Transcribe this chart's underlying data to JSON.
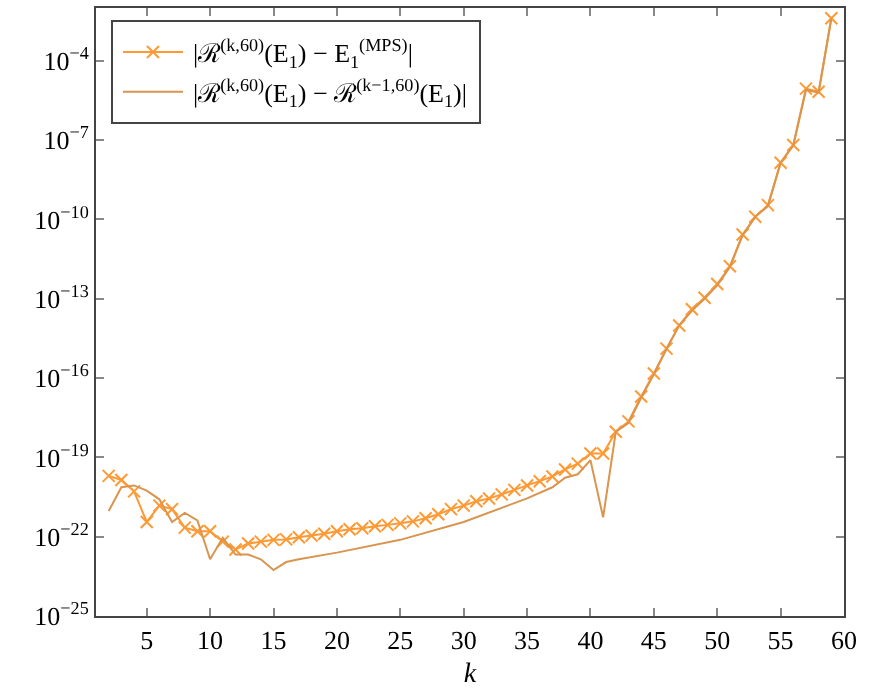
{
  "chart_data": {
    "type": "line",
    "xlabel": "k",
    "log": "y",
    "grid": false,
    "legend": "top left",
    "xlim": [
      1,
      60
    ],
    "xticks": [
      5,
      10,
      15,
      20,
      25,
      30,
      35,
      40,
      45,
      50,
      55,
      60
    ],
    "ylim": [
      1e-25,
      0.01
    ],
    "yticks": [
      {
        "value": 1e-25,
        "label": "10$^{−25}$"
      },
      {
        "value": 1e-22,
        "label": "10$^{−22}$"
      },
      {
        "value": 1e-19,
        "label": "10$^{−19}$"
      },
      {
        "value": 1e-16,
        "label": "10$^{−16}$"
      },
      {
        "value": 1e-13,
        "label": "10$^{−13}$"
      },
      {
        "value": 1e-10,
        "label": "10$^{−10}$"
      },
      {
        "value": 1e-07,
        "label": "10$^{−7}$"
      },
      {
        "value": 0.0001,
        "label": "10$^{−4}$"
      }
    ],
    "series": [
      {
        "name": "|ℛ$^{(k,60)}$(E$_{1}$) − E$_{1}$$^{(MPS)}$|",
        "color": "#ff9933",
        "marker": "cross",
        "x": [
          2,
          3,
          4,
          5,
          6,
          7,
          8,
          9,
          10,
          11,
          12,
          13,
          14,
          15,
          16,
          17,
          18,
          19,
          20,
          21,
          22,
          23,
          24,
          25,
          26,
          27,
          28,
          29,
          30,
          31,
          32,
          33,
          34,
          35,
          36,
          37,
          38,
          39,
          40,
          41,
          42,
          43,
          44,
          45,
          46,
          47,
          48,
          49,
          50,
          51,
          52,
          53,
          54,
          55,
          56,
          57,
          58,
          59
        ],
        "values": [
          2e-20,
          1.4e-20,
          5.2e-21,
          3.6e-22,
          1.5e-21,
          1.1e-21,
          2.2e-22,
          1.6e-22,
          1.6e-22,
          6.5e-23,
          3.3e-23,
          5.5e-23,
          6.5e-23,
          7.6e-23,
          7.9e-23,
          9.5e-23,
          1.1e-22,
          1.3e-22,
          1.6e-22,
          1.9e-22,
          2.1e-22,
          2.5e-22,
          2.8e-22,
          3.2e-22,
          3.8e-22,
          5e-22,
          7.1e-22,
          1.1e-21,
          1.5e-21,
          2.2e-21,
          2.8e-21,
          4e-21,
          5.9e-21,
          8.7e-21,
          1.26e-20,
          1.9e-20,
          3.5e-20,
          5.8e-20,
          1.4e-19,
          1.4e-19,
          9.3e-19,
          2.3e-18,
          2e-17,
          1.5e-16,
          1.3e-15,
          9.8e-15,
          4e-14,
          1.1e-13,
          3.6e-13,
          1.7e-12,
          2.7e-11,
          1.26e-10,
          3.5e-10,
          1.4e-08,
          6.6e-08,
          8.9e-06,
          6.8e-06,
          0.0041
        ]
      },
      {
        "name": "|ℛ$^{(k,60)}$(E$_{1}$) − ℛ$^{(k−1,60)}$(E$_{1}$)|",
        "color": "#d9954f",
        "marker": "none",
        "x": [
          2,
          3,
          4,
          5,
          6,
          7,
          8,
          9,
          10,
          11,
          12,
          13,
          14,
          15,
          16,
          17,
          20,
          25,
          30,
          35,
          37,
          38,
          39,
          40,
          41,
          42,
          43,
          44,
          45,
          46,
          47,
          48,
          49,
          50,
          51,
          52,
          53,
          54,
          55,
          56,
          57,
          58,
          59
        ],
        "values": [
          9.3e-22,
          7.4e-21,
          8.7e-21,
          5.5e-21,
          2.6e-21,
          3.6e-22,
          7.9e-22,
          4.1e-22,
          1.4e-23,
          9.1e-23,
          2.1e-23,
          2.1e-23,
          1.4e-23,
          5.5e-24,
          1.1e-23,
          1.4e-23,
          2.5e-23,
          7.6e-23,
          3.6e-22,
          2.8e-21,
          7.4e-21,
          1.7e-20,
          2.3e-20,
          7.9e-20,
          5.4e-22,
          9.3e-19,
          2e-18,
          1.8e-17,
          1.4e-16,
          1.26e-15,
          1e-14,
          3.5e-14,
          1e-13,
          3.2e-13,
          1.6e-12,
          2.5e-11,
          1.26e-10,
          3.2e-10,
          1.4e-08,
          6.3e-08,
          7.9e-06,
          6.3e-06,
          0.004
        ]
      }
    ]
  }
}
